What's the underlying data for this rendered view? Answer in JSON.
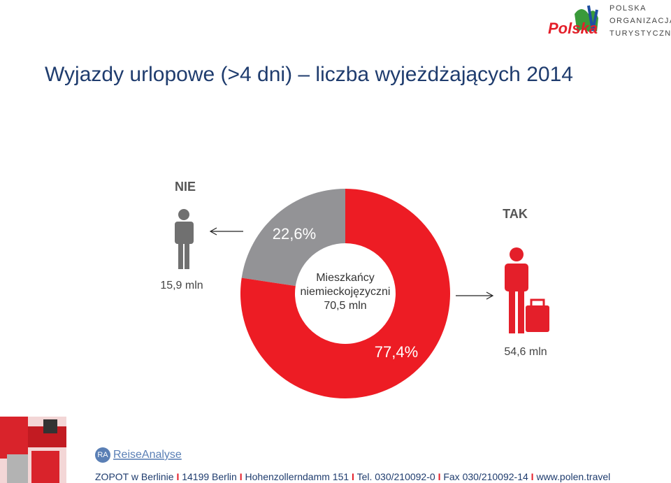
{
  "logo": {
    "lines": [
      "POLSKA",
      "ORGANIZACJA",
      "TURYSTYCZNA"
    ],
    "mark": "Polska"
  },
  "chart_data": {
    "type": "donut",
    "title": "Wyjazdy urlopowe (>4 dni) – liczba wyjeżdżających 2014",
    "categories": [
      "NIE",
      "TAK"
    ],
    "values": [
      22.6,
      77.4
    ],
    "value_labels": [
      "22,6%",
      "77,4%"
    ],
    "colors": [
      "#939396",
      "#ed1c24"
    ],
    "annotations": [
      "15,9 mln",
      "54,6 mln"
    ],
    "center_label": [
      "Mieszkańcy",
      "niemieckojęzyczni",
      "70,5 mln"
    ]
  },
  "footer": {
    "brand": [
      "RA",
      "ReiseAnalyse"
    ],
    "separator": "I",
    "items": [
      "ZOPOT w Berlinie",
      "14199 Berlin",
      "Hohenzollerndamm 151",
      "Tel. 030/210092-0",
      "Fax 030/210092-14",
      "www.polen.travel"
    ]
  }
}
